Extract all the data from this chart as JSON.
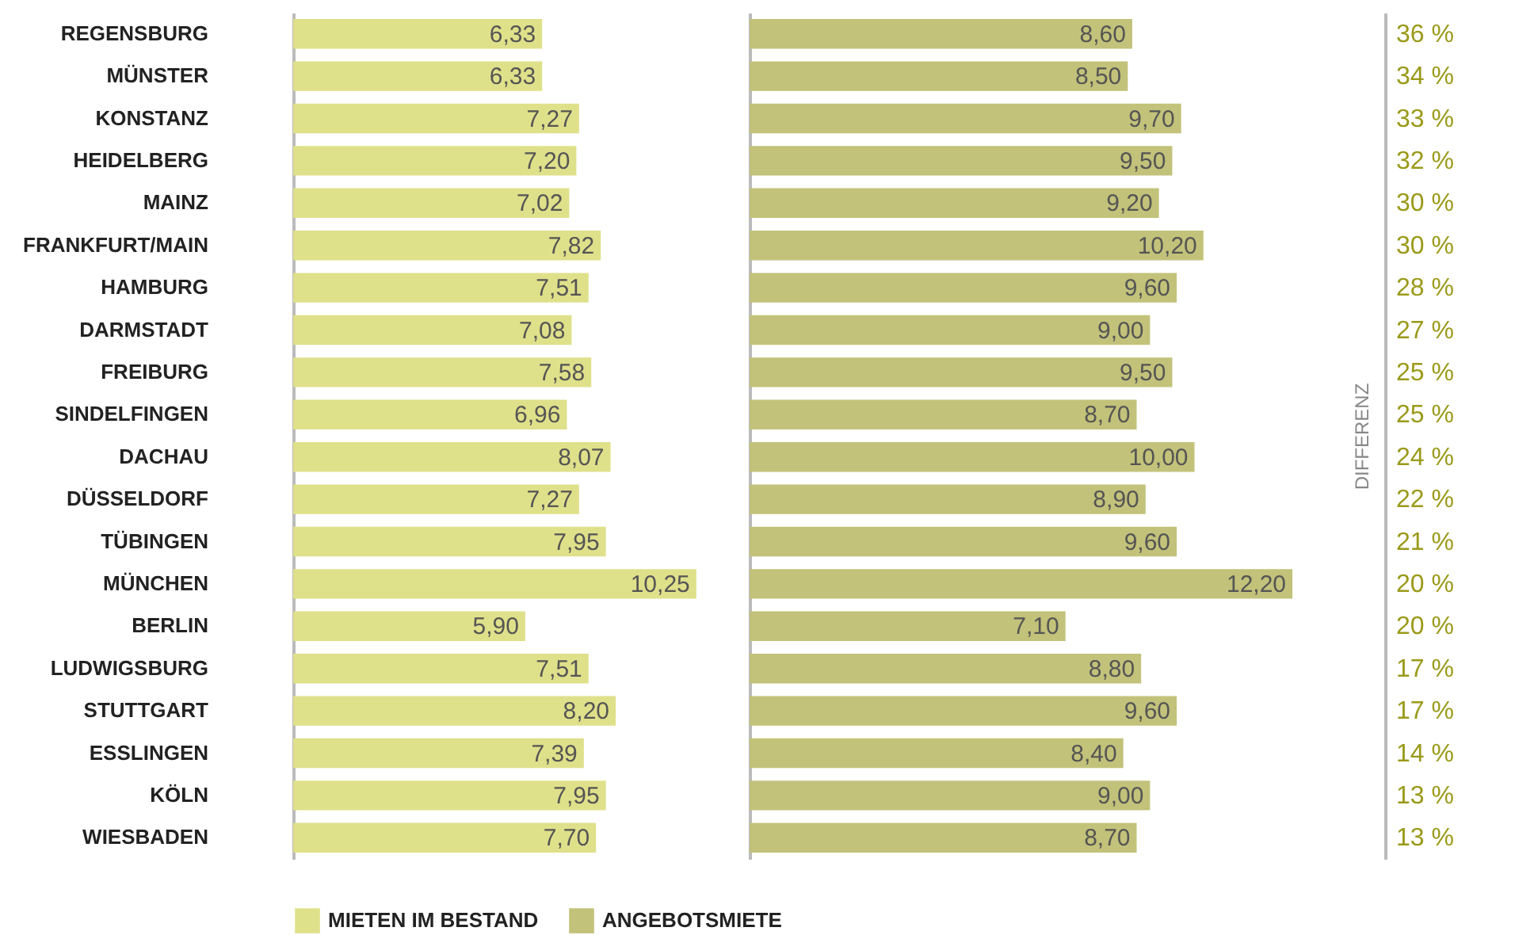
{
  "chart_data": [
    {
      "type": "bar",
      "orientation": "horizontal",
      "categories": [
        "REGENSBURG",
        "MÜNSTER",
        "KONSTANZ",
        "HEIDELBERG",
        "MAINZ",
        "FRANKFURT/MAIN",
        "HAMBURG",
        "DARMSTADT",
        "FREIBURG",
        "SINDELFINGEN",
        "DACHAU",
        "DÜSSELDORF",
        "TÜBINGEN",
        "MÜNCHEN",
        "BERLIN",
        "LUDWIGSBURG",
        "STUTTGART",
        "ESSLINGEN",
        "KÖLN",
        "WIESBADEN"
      ],
      "series": [
        {
          "name": "MIETEN IM BESTAND",
          "color": "#dfe08a",
          "values": [
            6.33,
            6.33,
            7.27,
            7.2,
            7.02,
            7.82,
            7.51,
            7.08,
            7.58,
            6.96,
            8.07,
            7.27,
            7.95,
            10.25,
            5.9,
            7.51,
            8.2,
            7.39,
            7.95,
            7.7
          ],
          "value_labels": [
            "6,33",
            "6,33",
            "7,27",
            "7,20",
            "7,02",
            "7,82",
            "7,51",
            "7,08",
            "7,58",
            "6,96",
            "8,07",
            "7,27",
            "7,95",
            "10,25",
            "5,90",
            "7,51",
            "8,20",
            "7,39",
            "7,95",
            "7,70"
          ]
        }
      ],
      "tick_labels": "y",
      "legend": "bottom"
    },
    {
      "type": "bar",
      "orientation": "horizontal",
      "categories": [
        null,
        null,
        null,
        null,
        null,
        null,
        null,
        null,
        null,
        null,
        null,
        null,
        null,
        null,
        null,
        null,
        null,
        null,
        null,
        null
      ],
      "series": [
        {
          "name": "ANGEBOTSMIETE",
          "color": "#c2c27a",
          "values": [
            8.6,
            8.5,
            9.7,
            9.5,
            9.2,
            10.2,
            9.6,
            9.0,
            9.5,
            8.7,
            10.0,
            8.9,
            9.6,
            12.2,
            7.1,
            8.8,
            9.6,
            8.4,
            9.0,
            8.7
          ],
          "value_labels": [
            "8,60",
            "8,50",
            "9,70",
            "9,50",
            "9,20",
            "10,20",
            "9,60",
            "9,00",
            "9,50",
            "8,70",
            "10,00",
            "8,90",
            "9,60",
            "12,20",
            "7,10",
            "8,80",
            "9,60",
            "8,40",
            "9,00",
            "8,70"
          ]
        }
      ],
      "tick_labels": false,
      "legend": "bottom"
    },
    {
      "type": "other",
      "ylabel": "DIFFERENZ",
      "series": [
        {
          "color": "#9a9a1a",
          "values": [
            36,
            34,
            33,
            32,
            30,
            30,
            28,
            27,
            25,
            25,
            24,
            22,
            21,
            20,
            20,
            17,
            17,
            14,
            13,
            13
          ],
          "value_labels": [
            "36 %",
            "34 %",
            "33 %",
            "32 %",
            "30 %",
            "30 %",
            "28 %",
            "27 %",
            "25 %",
            "25 %",
            "24 %",
            "22 %",
            "21 %",
            "20 %",
            "20 %",
            "17 %",
            "17 %",
            "14 %",
            "13 %",
            "13 %"
          ]
        }
      ]
    }
  ]
}
